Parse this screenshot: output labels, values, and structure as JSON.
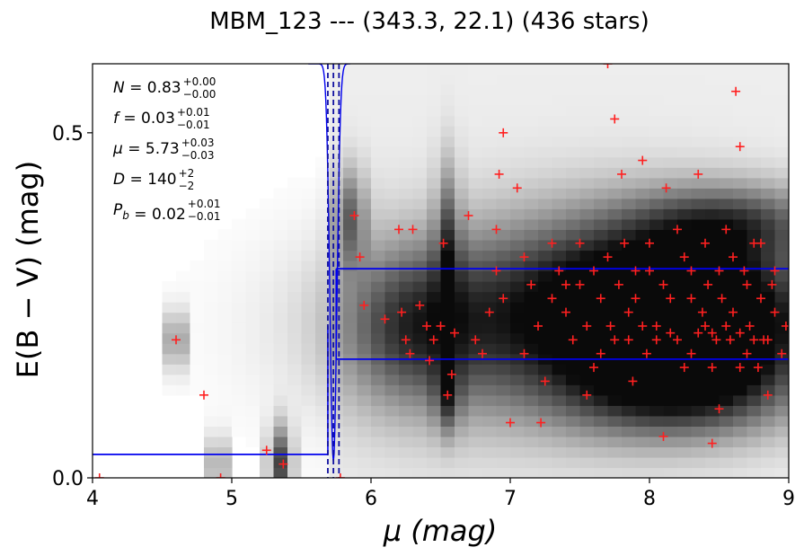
{
  "chart_data": {
    "type": "heatmap",
    "title": "MBM_123 --- (343.3, 22.1) (436 stars)",
    "xlabel": "μ (mag)",
    "ylabel": "E(B − V) (mag)",
    "xlim": [
      4,
      9
    ],
    "ylim": [
      0,
      0.6
    ],
    "x_ticks": [
      4,
      5,
      6,
      7,
      8,
      9
    ],
    "x_tick_labels": [
      "4",
      "5",
      "6",
      "7",
      "8",
      "9"
    ],
    "y_ticks": [
      0.0,
      0.5
    ],
    "y_tick_labels": [
      "0.0",
      "0.5"
    ],
    "grid": false,
    "colors": {
      "stars": "#ff2020",
      "profile": "#0000ee",
      "background": "#ffffff"
    },
    "annotations": [
      {
        "name": "N",
        "value": "0.83",
        "sup": "+0.00",
        "sub": "−0.00"
      },
      {
        "name": "f",
        "value": "0.03",
        "sup": "+0.01",
        "sub": "−0.01"
      },
      {
        "name": "μ",
        "value": "5.73",
        "sup": "+0.03",
        "sub": "−0.03"
      },
      {
        "name": "D",
        "value": "140",
        "sup": "+2",
        "sub": "−2"
      },
      {
        "name": "P_b",
        "value": "0.02",
        "sup": "+0.01",
        "sub": "−0.01"
      }
    ],
    "profile_steps": [
      {
        "x_start": 4.0,
        "x_end": 5.69,
        "y": 0.034
      },
      {
        "x_start": 5.75,
        "x_end": 9.0,
        "y": 0.172
      },
      {
        "x_start": 5.75,
        "x_end": 9.0,
        "y": 0.303
      }
    ],
    "distance_lines": [
      5.69,
      5.73,
      5.77
    ],
    "density_blobs": [
      {
        "x": 8.4,
        "y": 0.22,
        "sx": 0.55,
        "sy": 0.07,
        "w": 1.0
      },
      {
        "x": 7.9,
        "y": 0.26,
        "sx": 0.7,
        "sy": 0.09,
        "w": 0.75
      },
      {
        "x": 7.0,
        "y": 0.22,
        "sx": 0.9,
        "sy": 0.1,
        "w": 0.5
      },
      {
        "x": 6.3,
        "y": 0.22,
        "sx": 0.35,
        "sy": 0.08,
        "w": 0.45
      },
      {
        "x": 5.85,
        "y": 0.38,
        "sx": 0.08,
        "sy": 0.05,
        "w": 0.5
      },
      {
        "x": 6.55,
        "y": 0.35,
        "sx": 0.06,
        "sy": 0.08,
        "w": 0.45
      },
      {
        "x": 6.55,
        "y": 0.12,
        "sx": 0.06,
        "sy": 0.04,
        "w": 0.45
      },
      {
        "x": 4.6,
        "y": 0.2,
        "sx": 0.04,
        "sy": 0.03,
        "w": 0.7
      },
      {
        "x": 4.9,
        "y": 0.02,
        "sx": 0.04,
        "sy": 0.03,
        "w": 0.6
      },
      {
        "x": 5.35,
        "y": 0.02,
        "sx": 0.06,
        "sy": 0.04,
        "w": 0.75
      },
      {
        "x": 8.6,
        "y": 0.37,
        "sx": 0.5,
        "sy": 0.04,
        "w": 0.55
      },
      {
        "x": 8.2,
        "y": 0.12,
        "sx": 0.6,
        "sy": 0.05,
        "w": 0.5
      }
    ],
    "stars": [
      [
        4.05,
        0.0
      ],
      [
        4.6,
        0.2
      ],
      [
        4.8,
        0.12
      ],
      [
        4.92,
        0.0
      ],
      [
        5.25,
        0.04
      ],
      [
        5.37,
        0.02
      ],
      [
        5.78,
        0.0
      ],
      [
        5.88,
        0.38
      ],
      [
        5.92,
        0.32
      ],
      [
        5.95,
        0.25
      ],
      [
        6.1,
        0.23
      ],
      [
        6.2,
        0.36
      ],
      [
        6.22,
        0.24
      ],
      [
        6.25,
        0.2
      ],
      [
        6.28,
        0.18
      ],
      [
        6.3,
        0.36
      ],
      [
        6.35,
        0.25
      ],
      [
        6.4,
        0.22
      ],
      [
        6.42,
        0.17
      ],
      [
        6.5,
        0.22
      ],
      [
        6.52,
        0.34
      ],
      [
        6.55,
        0.12
      ],
      [
        6.58,
        0.15
      ],
      [
        6.6,
        0.21
      ],
      [
        6.7,
        0.38
      ],
      [
        6.75,
        0.2
      ],
      [
        6.8,
        0.18
      ],
      [
        6.85,
        0.24
      ],
      [
        6.9,
        0.3
      ],
      [
        6.92,
        0.44
      ],
      [
        6.95,
        0.5
      ],
      [
        7.05,
        0.42
      ],
      [
        7.1,
        0.18
      ],
      [
        7.15,
        0.28
      ],
      [
        7.2,
        0.22
      ],
      [
        7.25,
        0.14
      ],
      [
        7.3,
        0.26
      ],
      [
        7.35,
        0.3
      ],
      [
        7.4,
        0.24
      ],
      [
        7.45,
        0.2
      ],
      [
        7.5,
        0.28
      ],
      [
        7.55,
        0.22
      ],
      [
        7.6,
        0.16
      ],
      [
        7.65,
        0.26
      ],
      [
        7.7,
        0.6
      ],
      [
        7.72,
        0.22
      ],
      [
        7.75,
        0.52
      ],
      [
        7.78,
        0.28
      ],
      [
        7.8,
        0.44
      ],
      [
        7.82,
        0.34
      ],
      [
        7.85,
        0.2
      ],
      [
        7.88,
        0.14
      ],
      [
        7.9,
        0.26
      ],
      [
        7.95,
        0.46
      ],
      [
        7.98,
        0.18
      ],
      [
        8.0,
        0.3
      ],
      [
        8.05,
        0.22
      ],
      [
        8.1,
        0.06
      ],
      [
        8.12,
        0.42
      ],
      [
        8.15,
        0.26
      ],
      [
        8.2,
        0.2
      ],
      [
        8.25,
        0.32
      ],
      [
        8.3,
        0.18
      ],
      [
        8.35,
        0.44
      ],
      [
        8.38,
        0.24
      ],
      [
        8.4,
        0.22
      ],
      [
        8.42,
        0.28
      ],
      [
        8.45,
        0.05
      ],
      [
        8.48,
        0.2
      ],
      [
        8.5,
        0.1
      ],
      [
        8.52,
        0.26
      ],
      [
        8.55,
        0.36
      ],
      [
        8.58,
        0.2
      ],
      [
        8.6,
        0.24
      ],
      [
        8.62,
        0.56
      ],
      [
        8.65,
        0.48
      ],
      [
        8.68,
        0.3
      ],
      [
        8.7,
        0.18
      ],
      [
        8.72,
        0.22
      ],
      [
        8.75,
        0.34
      ],
      [
        8.78,
        0.16
      ],
      [
        8.8,
        0.26
      ],
      [
        8.82,
        0.2
      ],
      [
        8.85,
        0.12
      ],
      [
        8.88,
        0.28
      ],
      [
        8.9,
        0.24
      ],
      [
        8.95,
        0.18
      ],
      [
        8.98,
        0.22
      ],
      [
        7.0,
        0.08
      ],
      [
        7.22,
        0.08
      ],
      [
        6.9,
        0.36
      ],
      [
        7.55,
        0.12
      ],
      [
        6.45,
        0.2
      ],
      [
        8.3,
        0.26
      ],
      [
        8.35,
        0.21
      ],
      [
        8.45,
        0.21
      ],
      [
        8.55,
        0.22
      ],
      [
        8.65,
        0.21
      ],
      [
        8.75,
        0.2
      ],
      [
        8.15,
        0.21
      ],
      [
        8.05,
        0.2
      ],
      [
        7.95,
        0.22
      ],
      [
        7.85,
        0.24
      ],
      [
        7.75,
        0.2
      ],
      [
        7.65,
        0.18
      ],
      [
        8.25,
        0.16
      ],
      [
        8.45,
        0.16
      ],
      [
        8.65,
        0.16
      ],
      [
        8.85,
        0.2
      ],
      [
        8.0,
        0.34
      ],
      [
        8.2,
        0.36
      ],
      [
        8.4,
        0.34
      ],
      [
        8.6,
        0.32
      ],
      [
        8.8,
        0.34
      ],
      [
        7.7,
        0.32
      ],
      [
        7.5,
        0.34
      ],
      [
        7.3,
        0.34
      ],
      [
        7.1,
        0.32
      ],
      [
        6.95,
        0.26
      ],
      [
        8.1,
        0.28
      ],
      [
        8.3,
        0.3
      ],
      [
        8.5,
        0.3
      ],
      [
        8.7,
        0.28
      ],
      [
        8.9,
        0.3
      ],
      [
        7.9,
        0.3
      ],
      [
        7.6,
        0.3
      ],
      [
        7.4,
        0.28
      ]
    ]
  }
}
